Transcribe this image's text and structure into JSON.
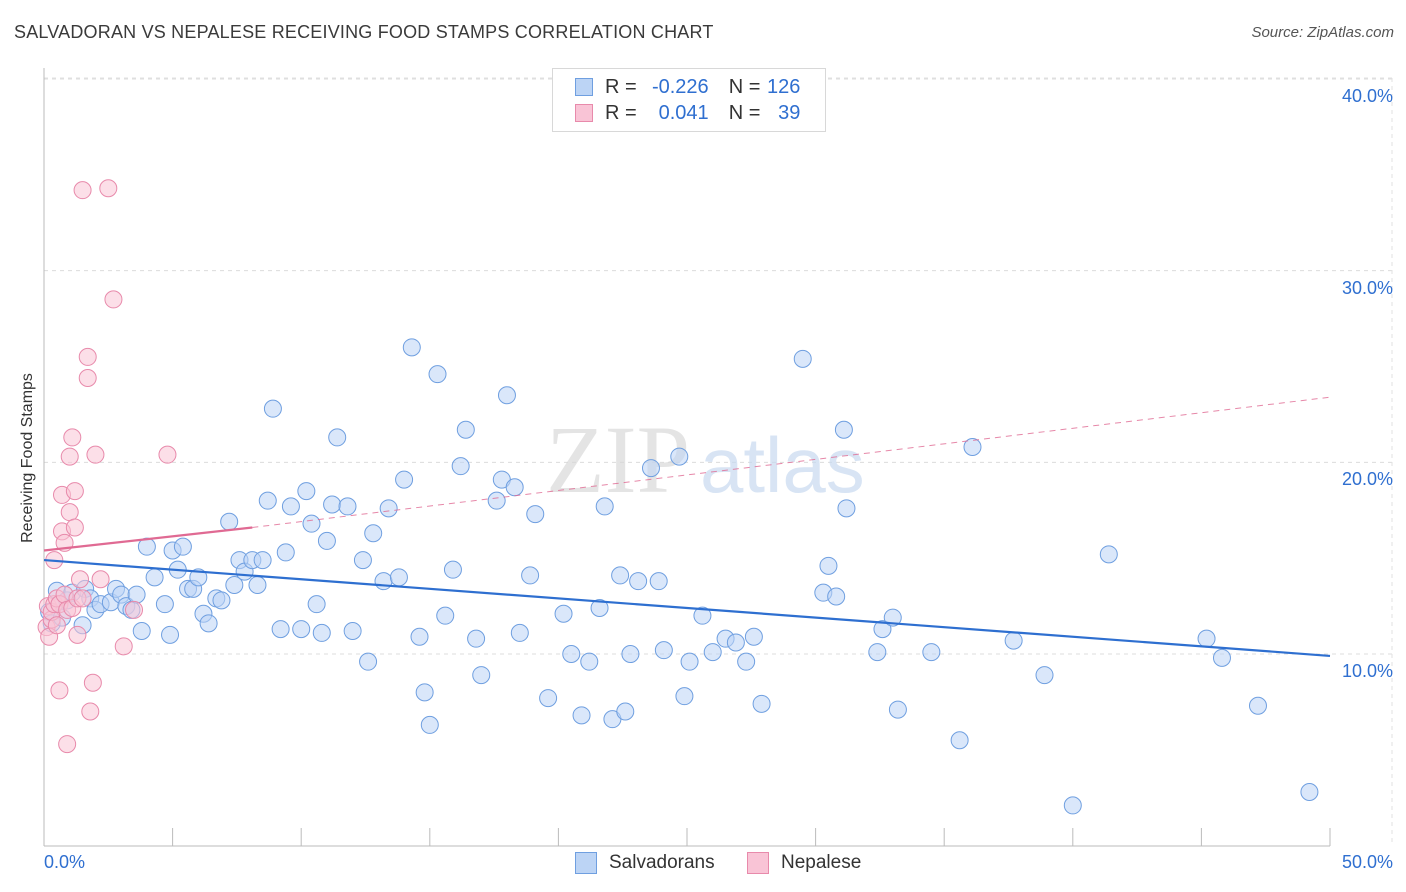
{
  "title": "SALVADORAN VS NEPALESE RECEIVING FOOD STAMPS CORRELATION CHART",
  "source": "Source: ZipAtlas.com",
  "watermark": {
    "zip": "ZIP",
    "atlas": "atlas"
  },
  "legend_top": {
    "rows": [
      {
        "r_label": "R =",
        "r_value": "-0.226",
        "n_label": "N =",
        "n_value": "126"
      },
      {
        "r_label": "R =",
        "r_value": "0.041",
        "n_label": "N =",
        "n_value": "39"
      }
    ]
  },
  "legend_bottom": {
    "series1": "Salvadorans",
    "series2": "Nepalese"
  },
  "colors": {
    "blue_fill": "#bcd4f5",
    "blue_stroke": "#6f9fe0",
    "blue_line": "#2e6fd0",
    "pink_fill": "#f9c4d6",
    "pink_stroke": "#e88aab",
    "pink_line": "#e06a93",
    "tick_text": "#2f6fd0"
  },
  "chart_data": {
    "type": "scatter",
    "title": "SALVADORAN VS NEPALESE RECEIVING FOOD STAMPS CORRELATION CHART",
    "xlabel": "",
    "ylabel": "Receiving Food Stamps",
    "xlim": [
      0,
      50
    ],
    "ylim": [
      0,
      42
    ],
    "x_tick_labels": [
      "0.0%",
      "50.0%"
    ],
    "y_ticks": [
      10,
      20,
      30,
      40
    ],
    "y_tick_labels": [
      "10.0%",
      "20.0%",
      "30.0%",
      "40.0%"
    ],
    "grid": true,
    "series": [
      {
        "name": "Salvadorans",
        "r": -0.226,
        "n": 126,
        "trend": {
          "x": [
            0,
            50
          ],
          "y": [
            14.9,
            9.9
          ],
          "style": "solid"
        },
        "points": [
          [
            0.2,
            12.2
          ],
          [
            0.3,
            11.6
          ],
          [
            0.5,
            13.3
          ],
          [
            0.6,
            12.6
          ],
          [
            0.7,
            11.9
          ],
          [
            0.9,
            12.8
          ],
          [
            1.1,
            13.2
          ],
          [
            1.5,
            11.5
          ],
          [
            1.6,
            13.4
          ],
          [
            1.8,
            12.9
          ],
          [
            2.0,
            12.3
          ],
          [
            2.2,
            12.6
          ],
          [
            2.6,
            12.7
          ],
          [
            2.8,
            13.4
          ],
          [
            3.0,
            13.1
          ],
          [
            3.2,
            12.5
          ],
          [
            3.4,
            12.3
          ],
          [
            3.6,
            13.1
          ],
          [
            3.8,
            11.2
          ],
          [
            4.0,
            15.6
          ],
          [
            4.3,
            14.0
          ],
          [
            4.7,
            12.6
          ],
          [
            4.9,
            11.0
          ],
          [
            5.0,
            15.4
          ],
          [
            5.2,
            14.4
          ],
          [
            5.4,
            15.6
          ],
          [
            5.6,
            13.4
          ],
          [
            5.8,
            13.4
          ],
          [
            6.0,
            14.0
          ],
          [
            6.2,
            12.1
          ],
          [
            6.4,
            11.6
          ],
          [
            6.7,
            12.9
          ],
          [
            6.9,
            12.8
          ],
          [
            7.2,
            16.9
          ],
          [
            7.4,
            13.6
          ],
          [
            7.6,
            14.9
          ],
          [
            7.8,
            14.3
          ],
          [
            8.1,
            14.9
          ],
          [
            8.3,
            13.6
          ],
          [
            8.5,
            14.9
          ],
          [
            8.7,
            18.0
          ],
          [
            8.9,
            22.8
          ],
          [
            9.2,
            11.3
          ],
          [
            9.4,
            15.3
          ],
          [
            9.6,
            17.7
          ],
          [
            10.0,
            11.3
          ],
          [
            10.2,
            18.5
          ],
          [
            10.4,
            16.8
          ],
          [
            10.6,
            12.6
          ],
          [
            10.8,
            11.1
          ],
          [
            11.0,
            15.9
          ],
          [
            11.2,
            17.8
          ],
          [
            11.4,
            21.3
          ],
          [
            11.8,
            17.7
          ],
          [
            12.0,
            11.2
          ],
          [
            12.4,
            14.9
          ],
          [
            12.6,
            9.6
          ],
          [
            12.8,
            16.3
          ],
          [
            13.2,
            13.8
          ],
          [
            13.4,
            17.6
          ],
          [
            13.8,
            14.0
          ],
          [
            14.0,
            19.1
          ],
          [
            14.3,
            26.0
          ],
          [
            14.6,
            10.9
          ],
          [
            14.8,
            8.0
          ],
          [
            15.0,
            6.3
          ],
          [
            15.3,
            24.6
          ],
          [
            15.6,
            12.0
          ],
          [
            15.9,
            14.4
          ],
          [
            16.2,
            19.8
          ],
          [
            16.4,
            21.7
          ],
          [
            16.8,
            10.8
          ],
          [
            17.0,
            8.9
          ],
          [
            17.6,
            18.0
          ],
          [
            17.8,
            19.1
          ],
          [
            18.0,
            23.5
          ],
          [
            18.3,
            18.7
          ],
          [
            18.5,
            11.1
          ],
          [
            18.9,
            14.1
          ],
          [
            19.1,
            17.3
          ],
          [
            19.6,
            7.7
          ],
          [
            20.2,
            12.1
          ],
          [
            20.5,
            10.0
          ],
          [
            20.9,
            6.8
          ],
          [
            21.2,
            9.6
          ],
          [
            21.6,
            12.4
          ],
          [
            21.8,
            17.7
          ],
          [
            22.1,
            6.6
          ],
          [
            22.4,
            14.1
          ],
          [
            22.6,
            7.0
          ],
          [
            22.8,
            10.0
          ],
          [
            23.1,
            13.8
          ],
          [
            23.6,
            19.7
          ],
          [
            23.9,
            13.8
          ],
          [
            24.1,
            10.2
          ],
          [
            24.7,
            20.3
          ],
          [
            24.9,
            7.8
          ],
          [
            25.1,
            9.6
          ],
          [
            25.6,
            12.0
          ],
          [
            26.0,
            10.1
          ],
          [
            26.5,
            10.8
          ],
          [
            26.9,
            10.6
          ],
          [
            27.3,
            9.6
          ],
          [
            27.6,
            10.9
          ],
          [
            27.9,
            7.4
          ],
          [
            29.5,
            25.4
          ],
          [
            30.3,
            13.2
          ],
          [
            30.5,
            14.6
          ],
          [
            30.8,
            13.0
          ],
          [
            31.1,
            21.7
          ],
          [
            31.2,
            17.6
          ],
          [
            32.4,
            10.1
          ],
          [
            32.6,
            11.3
          ],
          [
            33.0,
            11.9
          ],
          [
            33.2,
            7.1
          ],
          [
            34.5,
            10.1
          ],
          [
            35.6,
            5.5
          ],
          [
            36.1,
            20.8
          ],
          [
            37.7,
            10.7
          ],
          [
            38.9,
            8.9
          ],
          [
            40.0,
            2.1
          ],
          [
            41.4,
            15.2
          ],
          [
            45.2,
            10.8
          ],
          [
            45.8,
            9.8
          ],
          [
            47.2,
            7.3
          ],
          [
            49.2,
            2.8
          ]
        ]
      },
      {
        "name": "Nepalese",
        "r": 0.041,
        "n": 39,
        "trend": {
          "x": [
            0,
            8.1
          ],
          "y": [
            15.4,
            16.6
          ],
          "style": "solid",
          "extension": {
            "x": [
              8.1,
              50
            ],
            "y": [
              16.6,
              23.4
            ],
            "style": "dashed"
          }
        },
        "points": [
          [
            0.1,
            11.4
          ],
          [
            0.15,
            12.5
          ],
          [
            0.2,
            10.9
          ],
          [
            0.3,
            11.8
          ],
          [
            0.3,
            12.2
          ],
          [
            0.4,
            14.9
          ],
          [
            0.4,
            12.6
          ],
          [
            0.5,
            11.5
          ],
          [
            0.5,
            12.9
          ],
          [
            0.6,
            12.6
          ],
          [
            0.6,
            8.1
          ],
          [
            0.7,
            18.3
          ],
          [
            0.7,
            16.4
          ],
          [
            0.8,
            15.8
          ],
          [
            0.8,
            13.1
          ],
          [
            0.9,
            5.3
          ],
          [
            0.9,
            12.3
          ],
          [
            1.0,
            20.3
          ],
          [
            1.0,
            17.4
          ],
          [
            1.1,
            21.3
          ],
          [
            1.1,
            12.4
          ],
          [
            1.2,
            18.5
          ],
          [
            1.2,
            16.6
          ],
          [
            1.3,
            11.0
          ],
          [
            1.3,
            12.9
          ],
          [
            1.4,
            13.9
          ],
          [
            1.5,
            34.2
          ],
          [
            1.5,
            12.9
          ],
          [
            1.7,
            25.5
          ],
          [
            1.7,
            24.4
          ],
          [
            1.8,
            7.0
          ],
          [
            1.9,
            8.5
          ],
          [
            2.0,
            20.4
          ],
          [
            2.2,
            13.9
          ],
          [
            2.5,
            34.3
          ],
          [
            2.7,
            28.5
          ],
          [
            3.1,
            10.4
          ],
          [
            3.5,
            12.3
          ],
          [
            4.8,
            20.4
          ]
        ]
      }
    ]
  }
}
